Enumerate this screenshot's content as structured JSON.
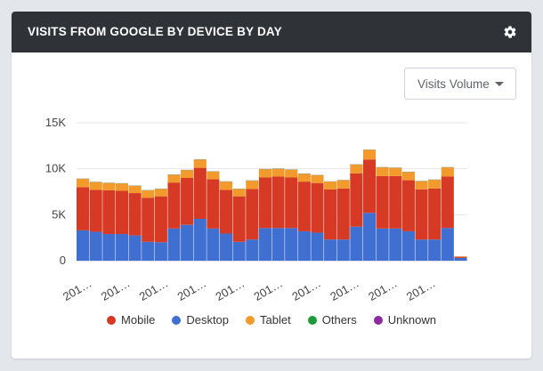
{
  "widget": {
    "title": "VISITS FROM GOOGLE BY DEVICE BY DAY",
    "settings_icon": "gear-icon",
    "dropdown": {
      "selected": "Visits Volume",
      "icon": "caret-down-icon"
    }
  },
  "chart_data": {
    "type": "bar",
    "stacked": true,
    "ylim": [
      0,
      15000
    ],
    "y_ticks": [
      "0",
      "5K",
      "10K",
      "15K"
    ],
    "y_tick_values": [
      0,
      5000,
      10000,
      15000
    ],
    "x_tick_labels": [
      "201…",
      "201…",
      "201…",
      "201…",
      "201…",
      "201…",
      "201…",
      "201…",
      "201…",
      "201…"
    ],
    "grid": true,
    "legend_position": "bottom",
    "series": [
      {
        "name": "Desktop",
        "color": "#3f6fd1",
        "values": [
          3300,
          3150,
          2900,
          2900,
          2750,
          2050,
          2000,
          3500,
          3900,
          4550,
          3500,
          2950,
          2050,
          2300,
          3550,
          3550,
          3550,
          3200,
          3050,
          2300,
          2300,
          3700,
          5200,
          3500,
          3500,
          3200,
          2300,
          2300,
          3550,
          300
        ]
      },
      {
        "name": "Mobile",
        "color": "#d63a25",
        "values": [
          4700,
          4550,
          4750,
          4700,
          4600,
          4800,
          5000,
          5000,
          5100,
          5550,
          5350,
          4750,
          4950,
          5500,
          5500,
          5600,
          5500,
          5400,
          5400,
          5450,
          5550,
          5800,
          5800,
          5700,
          5700,
          5550,
          5450,
          5550,
          5600,
          120
        ]
      },
      {
        "name": "Tablet",
        "color": "#f39a2c",
        "values": [
          900,
          850,
          800,
          800,
          800,
          800,
          800,
          850,
          850,
          900,
          850,
          900,
          800,
          900,
          900,
          850,
          850,
          850,
          850,
          850,
          900,
          950,
          1050,
          950,
          900,
          900,
          900,
          950,
          1000,
          50
        ]
      },
      {
        "name": "Others",
        "color": "#1f9a3a",
        "values": [
          20,
          20,
          20,
          20,
          20,
          20,
          20,
          20,
          20,
          20,
          20,
          20,
          20,
          20,
          20,
          20,
          20,
          20,
          20,
          20,
          20,
          20,
          20,
          20,
          20,
          20,
          20,
          20,
          20,
          5
        ]
      },
      {
        "name": "Unknown",
        "color": "#8e2a9e",
        "values": [
          10,
          10,
          10,
          10,
          10,
          10,
          10,
          10,
          10,
          10,
          10,
          10,
          10,
          10,
          10,
          10,
          10,
          10,
          10,
          10,
          10,
          10,
          10,
          10,
          10,
          10,
          10,
          10,
          10,
          3
        ]
      }
    ]
  },
  "legend": {
    "items": [
      {
        "label": "Mobile",
        "color": "#d63a25"
      },
      {
        "label": "Desktop",
        "color": "#3f6fd1"
      },
      {
        "label": "Tablet",
        "color": "#f39a2c"
      },
      {
        "label": "Others",
        "color": "#1f9a3a"
      },
      {
        "label": "Unknown",
        "color": "#8e2a9e"
      }
    ]
  }
}
